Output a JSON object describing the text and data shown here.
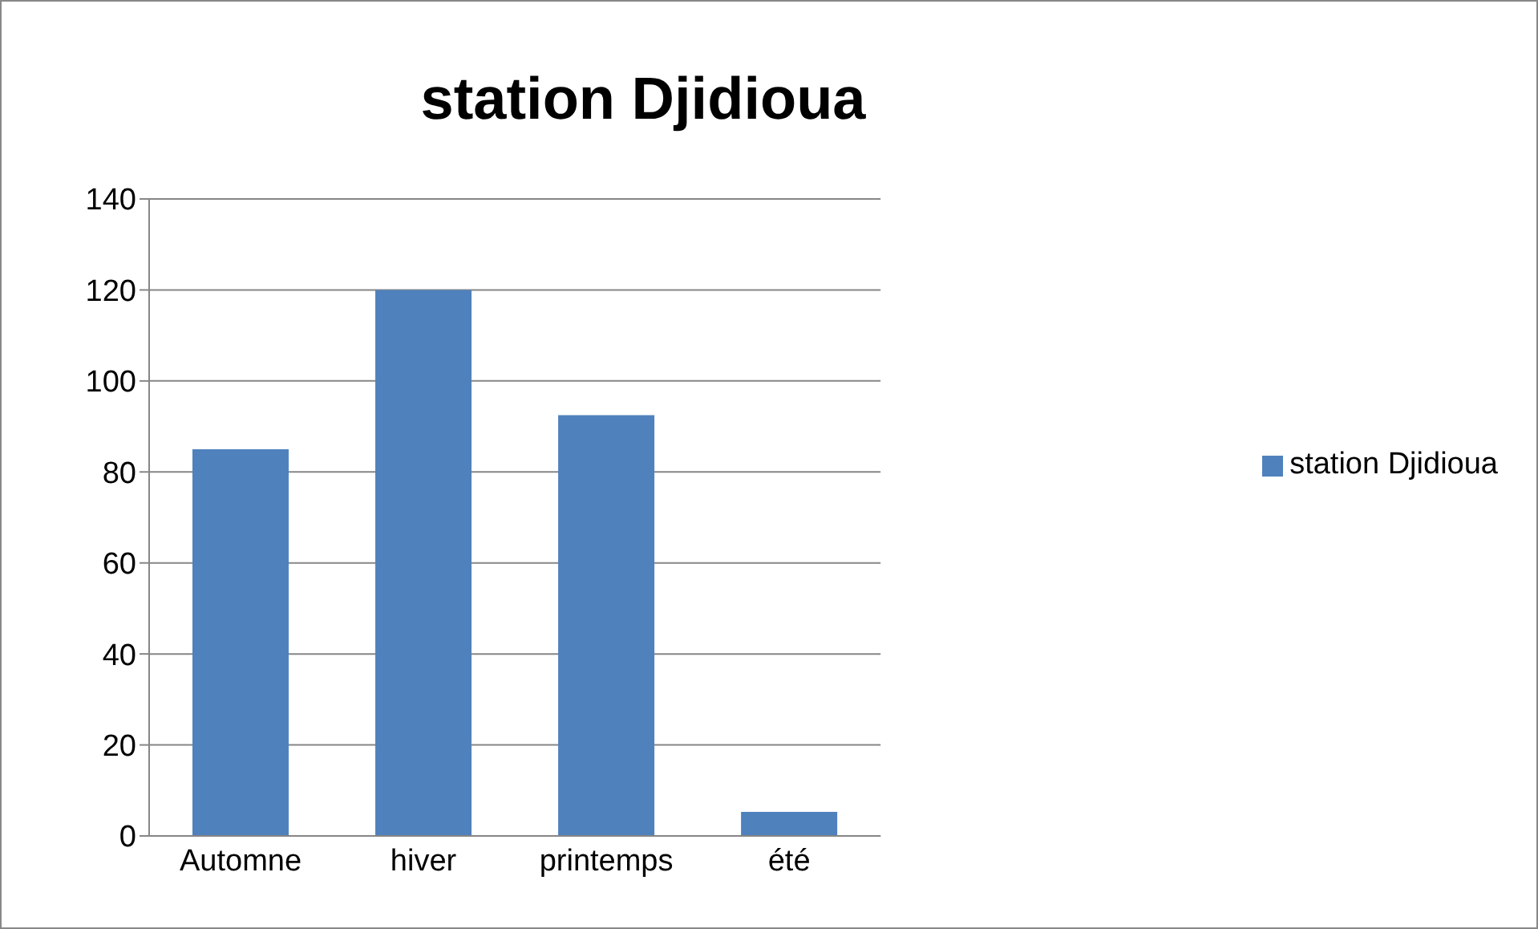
{
  "chart_data": {
    "type": "bar",
    "title": "station Djidioua",
    "categories": [
      "Automne",
      "hiver",
      "printemps",
      "été"
    ],
    "series": [
      {
        "name": "station Djidioua",
        "color": "#4f81bd",
        "values": [
          85,
          120,
          92.5,
          5.3
        ]
      }
    ],
    "ylim": [
      0,
      140
    ],
    "yticks": [
      0,
      20,
      40,
      60,
      80,
      100,
      120,
      140
    ],
    "grid": "y",
    "legend": "right"
  }
}
